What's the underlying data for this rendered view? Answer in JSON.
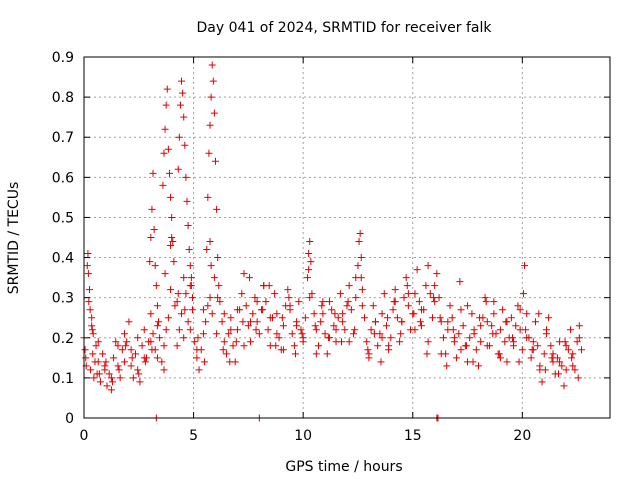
{
  "chart_data": {
    "type": "scatter",
    "title": "Day 041 of 2024, SRMTID for receiver falk",
    "xlabel": "GPS time / hours",
    "ylabel": "SRMTID / TECUs",
    "xlim": [
      0,
      24
    ],
    "ylim": [
      0,
      0.9
    ],
    "x_ticks": [
      0,
      5,
      10,
      15,
      20
    ],
    "x_tick_labels": [
      "0",
      "5",
      "10",
      "15",
      "20"
    ],
    "y_ticks": [
      0,
      0.1,
      0.2,
      0.3,
      0.4,
      0.5,
      0.6,
      0.7,
      0.8,
      0.9
    ],
    "y_tick_labels": [
      "0",
      "0.1",
      "0.2",
      "0.3",
      "0.4",
      "0.5",
      "0.6",
      "0.7",
      "0.8",
      "0.9"
    ],
    "grid": true,
    "marker": "plus",
    "color": "#e00000",
    "series": [
      {
        "name": "SRMTID",
        "x": [
          0.0,
          0.08,
          0.15,
          0.22,
          0.3,
          0.38,
          0.45,
          0.55,
          0.65,
          0.75,
          0.85,
          0.95,
          1.05,
          1.15,
          1.25,
          1.35,
          1.45,
          1.55,
          1.65,
          1.75,
          0.18,
          0.2,
          0.25,
          0.28,
          0.35,
          0.42,
          0.5,
          0.6,
          1.85,
          1.95,
          2.05,
          2.15,
          2.25,
          2.35,
          2.45,
          2.55,
          2.65,
          2.75,
          2.85,
          2.95,
          3.05,
          3.15,
          3.25,
          3.35,
          3.45,
          3.55,
          3.65,
          3.75,
          3.0,
          3.05,
          3.1,
          3.15,
          3.2,
          3.25,
          3.3,
          3.35,
          3.6,
          3.65,
          3.7,
          3.75,
          3.8,
          3.85,
          3.9,
          3.95,
          4.0,
          4.05,
          4.1,
          4.3,
          4.35,
          4.4,
          4.45,
          4.5,
          4.55,
          4.6,
          4.65,
          4.7,
          4.75,
          4.8,
          4.85,
          4.9,
          4.95,
          3.85,
          3.95,
          4.15,
          4.25,
          4.35,
          4.45,
          4.55,
          4.65,
          4.75,
          4.85,
          4.95,
          5.05,
          5.15,
          5.25,
          5.35,
          5.45,
          5.55,
          5.65,
          5.75,
          5.85,
          5.95,
          5.6,
          5.65,
          5.7,
          5.75,
          5.8,
          5.85,
          5.9,
          5.95,
          6.0,
          6.05,
          6.1,
          6.15,
          6.2,
          6.3,
          6.4,
          6.5,
          6.6,
          6.7,
          6.8,
          6.9,
          7.0,
          7.1,
          7.2,
          7.3,
          7.4,
          7.5,
          7.6,
          7.7,
          7.8,
          7.9,
          8.0,
          8.1,
          8.2,
          8.3,
          8.4,
          8.5,
          8.6,
          8.7,
          8.8,
          8.9,
          9.0,
          9.1,
          9.2,
          9.3,
          9.4,
          9.5,
          9.6,
          9.7,
          9.8,
          9.9,
          10.0,
          10.1,
          10.2,
          10.25,
          10.3,
          10.35,
          10.4,
          10.5,
          10.6,
          10.7,
          10.8,
          10.9,
          11.0,
          11.1,
          11.2,
          11.3,
          11.4,
          11.5,
          11.6,
          11.7,
          11.8,
          11.9,
          12.0,
          12.1,
          12.2,
          12.3,
          12.4,
          12.5,
          12.55,
          12.6,
          12.65,
          12.7,
          12.8,
          12.9,
          13.0,
          13.1,
          13.2,
          13.3,
          13.4,
          13.5,
          13.6,
          13.7,
          13.8,
          13.9,
          14.0,
          14.1,
          14.2,
          14.3,
          14.4,
          14.5,
          14.6,
          14.7,
          14.8,
          14.9,
          15.0,
          15.1,
          15.2,
          15.3,
          15.4,
          15.5,
          15.6,
          15.7,
          15.8,
          15.9,
          16.0,
          16.1,
          16.2,
          16.3,
          16.4,
          16.5,
          16.6,
          16.7,
          16.8,
          16.9,
          17.0,
          17.1,
          17.2,
          17.3,
          17.4,
          17.5,
          17.6,
          17.7,
          17.8,
          17.9,
          18.0,
          18.1,
          18.2,
          18.3,
          18.4,
          18.5,
          18.6,
          18.7,
          18.8,
          18.9,
          19.0,
          19.1,
          19.2,
          19.3,
          19.4,
          19.5,
          19.6,
          19.7,
          19.8,
          19.9,
          20.0,
          20.05,
          20.1,
          20.2,
          20.3,
          20.4,
          20.5,
          20.6,
          20.7,
          20.8,
          20.9,
          21.0,
          21.1,
          21.2,
          21.3,
          21.4,
          21.5,
          21.6,
          21.7,
          21.8,
          21.9,
          22.0,
          22.1,
          22.2,
          22.3,
          22.4,
          22.5,
          22.6,
          22.7,
          0.1,
          0.4,
          0.7,
          1.0,
          1.3,
          1.6,
          1.9,
          2.2,
          2.5,
          2.8,
          3.1,
          3.4,
          3.7,
          4.0,
          4.3,
          4.6,
          4.9,
          5.2,
          5.5,
          5.8,
          6.1,
          6.4,
          6.7,
          7.0,
          7.3,
          7.6,
          7.9,
          8.2,
          8.5,
          8.8,
          9.1,
          9.4,
          9.7,
          10.0,
          10.3,
          10.6,
          10.9,
          11.2,
          11.5,
          11.8,
          12.1,
          12.4,
          12.7,
          13.0,
          13.3,
          13.6,
          13.9,
          14.2,
          14.5,
          14.8,
          15.1,
          15.4,
          15.7,
          16.0,
          16.3,
          16.6,
          16.9,
          17.2,
          17.5,
          17.8,
          18.1,
          18.4,
          18.7,
          19.0,
          19.3,
          19.6,
          19.9,
          20.2,
          20.5,
          20.8,
          21.1,
          21.4,
          21.7,
          22.0,
          22.3,
          22.6,
          0.05,
          0.35,
          0.65,
          0.95,
          1.25,
          1.55,
          1.85,
          2.15,
          2.45,
          2.75,
          3.05,
          3.35,
          3.65,
          3.95,
          4.25,
          4.55,
          4.85,
          5.15,
          5.45,
          5.75,
          6.05,
          6.35,
          6.65,
          6.95,
          7.25,
          7.55,
          7.85,
          8.15,
          8.45,
          8.75,
          9.05,
          9.35,
          9.65,
          9.95,
          10.25,
          10.55,
          10.85,
          11.15,
          11.45,
          11.75,
          12.05,
          12.35,
          12.65,
          12.95,
          13.25,
          13.55,
          13.85,
          14.15,
          14.45,
          14.75,
          15.05,
          15.35,
          15.65,
          15.95,
          16.25,
          16.55,
          16.85,
          17.15,
          17.45,
          17.75,
          18.05,
          18.35,
          18.65,
          18.95,
          19.25,
          19.55,
          19.85,
          20.15,
          20.45,
          20.75,
          21.05,
          21.35,
          21.65,
          21.95,
          22.25,
          22.55,
          3.3,
          8.0,
          16.1,
          16.15
        ],
        "y": [
          0.2,
          0.15,
          0.38,
          0.29,
          0.12,
          0.22,
          0.1,
          0.18,
          0.14,
          0.09,
          0.16,
          0.12,
          0.08,
          0.11,
          0.07,
          0.15,
          0.19,
          0.13,
          0.1,
          0.17,
          0.41,
          0.36,
          0.32,
          0.27,
          0.25,
          0.21,
          0.14,
          0.11,
          0.21,
          0.19,
          0.24,
          0.13,
          0.1,
          0.16,
          0.12,
          0.09,
          0.18,
          0.22,
          0.15,
          0.19,
          0.26,
          0.21,
          0.17,
          0.23,
          0.2,
          0.14,
          0.18,
          0.22,
          0.39,
          0.45,
          0.52,
          0.61,
          0.47,
          0.38,
          0.33,
          0.28,
          0.58,
          0.66,
          0.72,
          0.78,
          0.82,
          0.67,
          0.61,
          0.55,
          0.5,
          0.44,
          0.39,
          0.62,
          0.7,
          0.78,
          0.84,
          0.81,
          0.75,
          0.68,
          0.6,
          0.54,
          0.48,
          0.42,
          0.38,
          0.35,
          0.3,
          0.25,
          0.32,
          0.28,
          0.18,
          0.22,
          0.26,
          0.2,
          0.31,
          0.24,
          0.33,
          0.27,
          0.19,
          0.15,
          0.12,
          0.17,
          0.21,
          0.24,
          0.28,
          0.3,
          0.26,
          0.35,
          0.42,
          0.55,
          0.66,
          0.73,
          0.8,
          0.88,
          0.84,
          0.76,
          0.64,
          0.52,
          0.4,
          0.33,
          0.29,
          0.24,
          0.19,
          0.16,
          0.21,
          0.25,
          0.18,
          0.14,
          0.22,
          0.27,
          0.31,
          0.36,
          0.28,
          0.23,
          0.19,
          0.26,
          0.3,
          0.24,
          0.21,
          0.27,
          0.33,
          0.29,
          0.22,
          0.18,
          0.25,
          0.31,
          0.26,
          0.2,
          0.17,
          0.23,
          0.28,
          0.32,
          0.27,
          0.21,
          0.18,
          0.24,
          0.29,
          0.22,
          0.19,
          0.25,
          0.35,
          0.41,
          0.44,
          0.39,
          0.31,
          0.26,
          0.22,
          0.18,
          0.24,
          0.29,
          0.21,
          0.16,
          0.2,
          0.27,
          0.23,
          0.19,
          0.25,
          0.31,
          0.26,
          0.22,
          0.28,
          0.33,
          0.27,
          0.21,
          0.3,
          0.38,
          0.44,
          0.46,
          0.4,
          0.32,
          0.25,
          0.19,
          0.16,
          0.22,
          0.28,
          0.24,
          0.18,
          0.21,
          0.26,
          0.31,
          0.23,
          0.17,
          0.2,
          0.27,
          0.32,
          0.25,
          0.19,
          0.24,
          0.3,
          0.35,
          0.28,
          0.22,
          0.26,
          0.31,
          0.37,
          0.29,
          0.23,
          0.27,
          0.33,
          0.38,
          0.31,
          0.25,
          0.29,
          0.36,
          0.3,
          0.24,
          0.2,
          0.16,
          0.22,
          0.28,
          0.25,
          0.19,
          0.15,
          0.21,
          0.27,
          0.23,
          0.18,
          0.14,
          0.2,
          0.26,
          0.22,
          0.17,
          0.13,
          0.19,
          0.25,
          0.3,
          0.24,
          0.18,
          0.23,
          0.29,
          0.21,
          0.16,
          0.22,
          0.27,
          0.19,
          0.14,
          0.2,
          0.25,
          0.18,
          0.23,
          0.28,
          0.22,
          0.17,
          0.31,
          0.38,
          0.26,
          0.2,
          0.15,
          0.19,
          0.24,
          0.18,
          0.13,
          0.09,
          0.16,
          0.21,
          0.25,
          0.18,
          0.14,
          0.11,
          0.15,
          0.19,
          0.13,
          0.08,
          0.12,
          0.17,
          0.22,
          0.16,
          0.12,
          0.19,
          0.23,
          0.17,
          0.13,
          0.16,
          0.11,
          0.14,
          0.09,
          0.12,
          0.18,
          0.15,
          0.11,
          0.14,
          0.17,
          0.24,
          0.36,
          0.45,
          0.31,
          0.27,
          0.33,
          0.2,
          0.14,
          0.38,
          0.3,
          0.26,
          0.22,
          0.27,
          0.18,
          0.24,
          0.29,
          0.33,
          0.25,
          0.21,
          0.17,
          0.28,
          0.23,
          0.2,
          0.3,
          0.16,
          0.26,
          0.29,
          0.22,
          0.24,
          0.19,
          0.35,
          0.28,
          0.15,
          0.24,
          0.2,
          0.18,
          0.29,
          0.24,
          0.31,
          0.22,
          0.27,
          0.19,
          0.33,
          0.16,
          0.24,
          0.2,
          0.17,
          0.28,
          0.21,
          0.23,
          0.18,
          0.26,
          0.15,
          0.24,
          0.19,
          0.27,
          0.2,
          0.17,
          0.12,
          0.22,
          0.16,
          0.14,
          0.18,
          0.13,
          0.2,
          0.17,
          0.23,
          0.19,
          0.13,
          0.1,
          0.18,
          0.14,
          0.17,
          0.2,
          0.15,
          0.19,
          0.15,
          0.12,
          0.43,
          0.29,
          0.35,
          0.22,
          0.17,
          0.27,
          0.44,
          0.21,
          0.17,
          0.14,
          0.19,
          0.24,
          0.35,
          0.22,
          0.27,
          0.33,
          0.18,
          0.25,
          0.3,
          0.16,
          0.21,
          0.37,
          0.23,
          0.28,
          0.2,
          0.26,
          0.19,
          0.29,
          0.22,
          0.35,
          0.17,
          0.21,
          0.14,
          0.25,
          0.29,
          0.21,
          0.33,
          0.26,
          0.24,
          0.16,
          0.3,
          0.25,
          0.13,
          0.22,
          0.34,
          0.18,
          0.14,
          0.25,
          0.29,
          0.21,
          0.16,
          0.24,
          0.2,
          0.14,
          0.22,
          0.17,
          0.26,
          0.12,
          0.15,
          0.11,
          0.19,
          0.15,
          0.1,
          0.0,
          0.0,
          0.0,
          0.0
        ]
      }
    ]
  }
}
